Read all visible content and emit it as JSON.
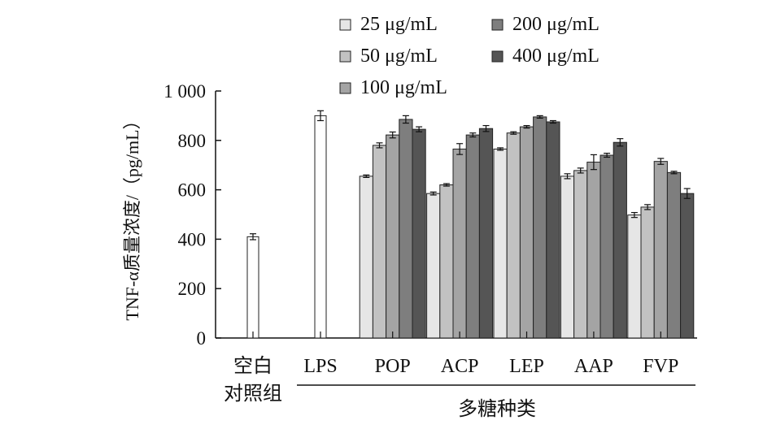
{
  "chart_data": {
    "type": "bar",
    "title": "",
    "ylabel": "TNF-α质量浓度/（pg/mL）",
    "xlabel": "多糖种类",
    "ylim": [
      0,
      1000
    ],
    "yticks": [
      "0",
      "200",
      "400",
      "600",
      "800",
      "1 000"
    ],
    "control_groups": [
      {
        "label_lines": [
          "空白",
          "对照组"
        ],
        "value": 410,
        "error": 12
      },
      {
        "label_lines": [
          "LPS"
        ],
        "value": 900,
        "error": 20
      }
    ],
    "categories": [
      "POP",
      "ACP",
      "LEP",
      "AAP",
      "FVP"
    ],
    "series": [
      {
        "name": "25 μg/mL",
        "color": "#e6e6e6",
        "values": [
          655,
          585,
          765,
          655,
          498
        ],
        "errors": [
          5,
          6,
          5,
          10,
          10
        ]
      },
      {
        "name": "50 μg/mL",
        "color": "#c2c2c2",
        "values": [
          780,
          620,
          830,
          678,
          530
        ],
        "errors": [
          10,
          5,
          5,
          10,
          10
        ]
      },
      {
        "name": "100 μg/mL",
        "color": "#a4a4a4",
        "values": [
          822,
          765,
          855,
          712,
          715
        ],
        "errors": [
          12,
          22,
          5,
          30,
          12
        ]
      },
      {
        "name": "200 μg/mL",
        "color": "#7e7e7e",
        "values": [
          885,
          822,
          895,
          740,
          670
        ],
        "errors": [
          15,
          8,
          5,
          8,
          5
        ]
      },
      {
        "name": "400 μg/mL",
        "color": "#555555",
        "values": [
          845,
          848,
          875,
          792,
          585
        ],
        "errors": [
          10,
          12,
          5,
          15,
          20
        ]
      }
    ],
    "legend_position": "top"
  }
}
